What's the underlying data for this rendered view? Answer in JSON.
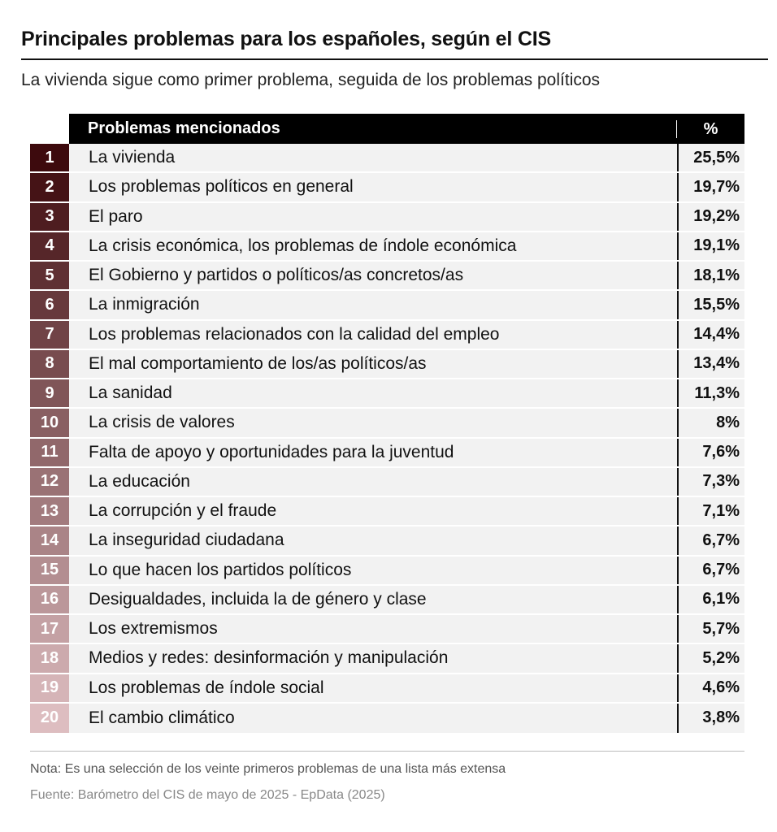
{
  "title": "Principales problemas para los españoles, según el CIS",
  "subtitle": "La vivienda sigue como primer problema, seguida de los problemas políticos",
  "header": {
    "label": "Problemas mencionados",
    "value": "%"
  },
  "colors": {
    "rank_start": "#3d0a0d",
    "rank_end": "#ddbdc0"
  },
  "rows": [
    {
      "rank": "1",
      "label": "La vivienda",
      "value": "25,5%"
    },
    {
      "rank": "2",
      "label": "Los problemas políticos en general",
      "value": "19,7%"
    },
    {
      "rank": "3",
      "label": "El paro",
      "value": "19,2%"
    },
    {
      "rank": "4",
      "label": "La crisis económica, los problemas de índole económica",
      "value": "19,1%"
    },
    {
      "rank": "5",
      "label": "El Gobierno y partidos o políticos/as concretos/as",
      "value": "18,1%"
    },
    {
      "rank": "6",
      "label": "La inmigración",
      "value": "15,5%"
    },
    {
      "rank": "7",
      "label": "Los problemas relacionados con la calidad del empleo",
      "value": "14,4%"
    },
    {
      "rank": "8",
      "label": "El mal comportamiento de los/as políticos/as",
      "value": "13,4%"
    },
    {
      "rank": "9",
      "label": "La sanidad",
      "value": "11,3%"
    },
    {
      "rank": "10",
      "label": "La crisis de valores",
      "value": "8%"
    },
    {
      "rank": "11",
      "label": "Falta de apoyo y oportunidades para la juventud",
      "value": "7,6%"
    },
    {
      "rank": "12",
      "label": "La educación",
      "value": "7,3%"
    },
    {
      "rank": "13",
      "label": "La corrupción y el fraude",
      "value": "7,1%"
    },
    {
      "rank": "14",
      "label": "La inseguridad ciudadana",
      "value": "6,7%"
    },
    {
      "rank": "15",
      "label": "Lo que hacen los partidos políticos",
      "value": "6,7%"
    },
    {
      "rank": "16",
      "label": "Desigualdades, incluida la de género y clase",
      "value": "6,1%"
    },
    {
      "rank": "17",
      "label": "Los extremismos",
      "value": "5,7%"
    },
    {
      "rank": "18",
      "label": "Medios y redes: desinformación y manipulación",
      "value": "5,2%"
    },
    {
      "rank": "19",
      "label": "Los problemas de índole social",
      "value": "4,6%"
    },
    {
      "rank": "20",
      "label": "El cambio climático",
      "value": "3,8%"
    }
  ],
  "note": "Nota: Es una selección de los veinte primeros problemas de una lista más extensa",
  "source": "Fuente: Barómetro del CIS de mayo de 2025 - EpData (2025)"
}
